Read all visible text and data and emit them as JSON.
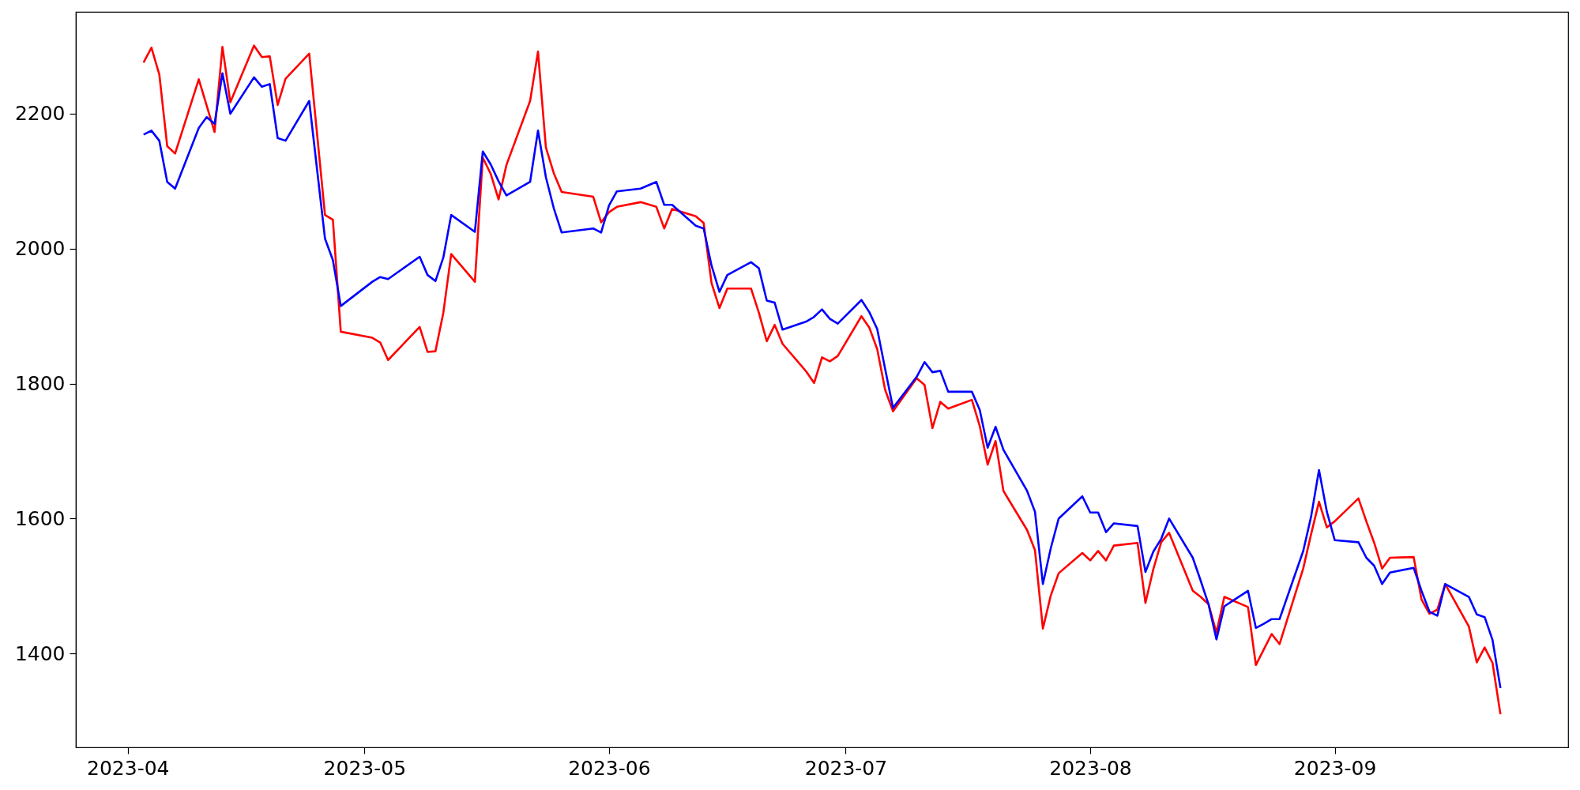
{
  "chart_data": {
    "type": "line",
    "x": [
      "2023-04-03",
      "2023-04-04",
      "2023-04-05",
      "2023-04-06",
      "2023-04-07",
      "2023-04-10",
      "2023-04-11",
      "2023-04-12",
      "2023-04-13",
      "2023-04-14",
      "2023-04-17",
      "2023-04-18",
      "2023-04-19",
      "2023-04-20",
      "2023-04-21",
      "2023-04-24",
      "2023-04-26",
      "2023-04-27",
      "2023-04-28",
      "2023-05-02",
      "2023-05-03",
      "2023-05-04",
      "2023-05-08",
      "2023-05-09",
      "2023-05-10",
      "2023-05-11",
      "2023-05-12",
      "2023-05-15",
      "2023-05-16",
      "2023-05-17",
      "2023-05-18",
      "2023-05-19",
      "2023-05-22",
      "2023-05-23",
      "2023-05-24",
      "2023-05-25",
      "2023-05-26",
      "2023-05-30",
      "2023-05-31",
      "2023-06-01",
      "2023-06-02",
      "2023-06-05",
      "2023-06-07",
      "2023-06-08",
      "2023-06-09",
      "2023-06-12",
      "2023-06-13",
      "2023-06-14",
      "2023-06-15",
      "2023-06-16",
      "2023-06-19",
      "2023-06-20",
      "2023-06-21",
      "2023-06-22",
      "2023-06-23",
      "2023-06-26",
      "2023-06-27",
      "2023-06-28",
      "2023-06-29",
      "2023-06-30",
      "2023-07-03",
      "2023-07-04",
      "2023-07-05",
      "2023-07-06",
      "2023-07-07",
      "2023-07-10",
      "2023-07-11",
      "2023-07-12",
      "2023-07-13",
      "2023-07-14",
      "2023-07-17",
      "2023-07-18",
      "2023-07-19",
      "2023-07-20",
      "2023-07-21",
      "2023-07-24",
      "2023-07-25",
      "2023-07-26",
      "2023-07-27",
      "2023-07-28",
      "2023-07-31",
      "2023-08-01",
      "2023-08-02",
      "2023-08-03",
      "2023-08-04",
      "2023-08-07",
      "2023-08-08",
      "2023-08-09",
      "2023-08-10",
      "2023-08-11",
      "2023-08-14",
      "2023-08-15",
      "2023-08-16",
      "2023-08-17",
      "2023-08-18",
      "2023-08-21",
      "2023-08-22",
      "2023-08-23",
      "2023-08-24",
      "2023-08-25",
      "2023-08-28",
      "2023-08-29",
      "2023-08-30",
      "2023-08-31",
      "2023-09-01",
      "2023-09-04",
      "2023-09-05",
      "2023-09-06",
      "2023-09-07",
      "2023-09-08",
      "2023-09-11",
      "2023-09-12",
      "2023-09-13",
      "2023-09-14",
      "2023-09-15",
      "2023-09-18",
      "2023-09-19",
      "2023-09-20",
      "2023-09-21",
      "2023-09-22"
    ],
    "series": [
      {
        "color": "#ff0000",
        "values": [
          2276,
          2298,
          2258,
          2152,
          2141,
          2251,
          2212,
          2173,
          2299,
          2217,
          2301,
          2284,
          2285,
          2213,
          2252,
          2289,
          2050,
          2043,
          1877,
          1868,
          1861,
          1835,
          1884,
          1847,
          1848,
          1905,
          1992,
          1951,
          2135,
          2111,
          2073,
          2124,
          2219,
          2292,
          2150,
          2112,
          2084,
          2077,
          2039,
          2054,
          2062,
          2069,
          2062,
          2030,
          2059,
          2048,
          2038,
          1949,
          1912,
          1941,
          1941,
          1905,
          1863,
          1887,
          1859,
          1818,
          1801,
          1839,
          1833,
          1841,
          1900,
          1883,
          1851,
          1791,
          1759,
          1808,
          1798,
          1734,
          1773,
          1763,
          1776,
          1737,
          1680,
          1715,
          1641,
          1583,
          1553,
          1437,
          1486,
          1519,
          1549,
          1538,
          1552,
          1538,
          1560,
          1564,
          1475,
          1525,
          1565,
          1579,
          1493,
          1484,
          1473,
          1431,
          1484,
          1469,
          1383,
          1406,
          1429,
          1414,
          1526,
          1577,
          1625,
          1587,
          1596,
          1630,
          1596,
          1564,
          1526,
          1542,
          1543,
          1480,
          1459,
          1465,
          1503,
          1440,
          1387,
          1409,
          1386,
          1310
        ]
      },
      {
        "color": "#0000ff",
        "values": [
          2169,
          2175,
          2160,
          2099,
          2089,
          2179,
          2195,
          2185,
          2260,
          2200,
          2254,
          2240,
          2244,
          2164,
          2160,
          2219,
          2015,
          1983,
          1915,
          1951,
          1958,
          1955,
          1988,
          1961,
          1952,
          1987,
          2050,
          2025,
          2144,
          2125,
          2100,
          2079,
          2099,
          2175,
          2106,
          2060,
          2024,
          2030,
          2024,
          2064,
          2085,
          2089,
          2099,
          2065,
          2065,
          2034,
          2030,
          1975,
          1936,
          1961,
          1980,
          1971,
          1923,
          1920,
          1880,
          1892,
          1899,
          1910,
          1896,
          1889,
          1924,
          1906,
          1881,
          1822,
          1764,
          1810,
          1832,
          1817,
          1819,
          1788,
          1788,
          1761,
          1705,
          1736,
          1702,
          1641,
          1610,
          1503,
          1556,
          1600,
          1633,
          1609,
          1609,
          1580,
          1593,
          1589,
          1521,
          1551,
          1570,
          1600,
          1542,
          1508,
          1473,
          1421,
          1470,
          1493,
          1438,
          1444,
          1451,
          1451,
          1552,
          1603,
          1672,
          1610,
          1568,
          1565,
          1542,
          1530,
          1503,
          1520,
          1527,
          1493,
          1462,
          1456,
          1503,
          1484,
          1458,
          1454,
          1420,
          1349
        ]
      }
    ],
    "xlim": [
      "2023-03-25T10:00",
      "2023-09-30T14:00"
    ],
    "xticks": [
      "2023-04",
      "2023-05",
      "2023-06",
      "2023-07",
      "2023-08",
      "2023-09"
    ],
    "ylim": [
      1261,
      2351
    ],
    "yticks": [
      1400,
      1600,
      1800,
      2000,
      2200
    ]
  }
}
